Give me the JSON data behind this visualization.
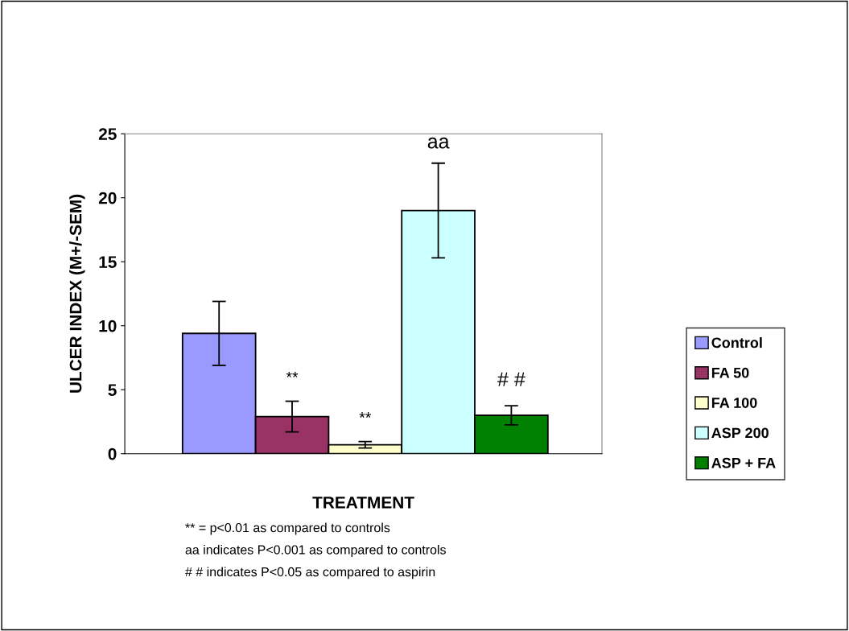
{
  "chart_data": {
    "type": "bar",
    "xlabel": "TREATMENT",
    "ylabel": "ULCER INDEX (M+/-SEM)",
    "categories": [
      null
    ],
    "series": [
      {
        "name": "Control",
        "color": "#9999ff",
        "values": [
          9.4
        ],
        "errors": [
          2.5
        ]
      },
      {
        "name": "FA 50",
        "color": "#993366",
        "values": [
          2.9
        ],
        "errors": [
          1.2
        ]
      },
      {
        "name": "FA 100",
        "color": "#ffffcc",
        "values": [
          0.7
        ],
        "errors": [
          0.25
        ]
      },
      {
        "name": "ASP 200",
        "color": "#ccffff",
        "values": [
          19.0
        ],
        "errors": [
          3.7
        ]
      },
      {
        "name": "ASP + FA",
        "color": "#008000",
        "values": [
          3.0
        ],
        "errors": [
          0.75
        ]
      }
    ],
    "ylim": [
      0,
      25
    ],
    "yticks": [
      0,
      5,
      10,
      15,
      20,
      25
    ],
    "grid": false,
    "legend": "right",
    "annotations": [
      "**",
      "**",
      "aa",
      "# #",
      "** = p<0.01 as compared to controls",
      "aa indicates P<0.001 as compared to controls",
      "# # indicates P<0.05 as compared to aspirin"
    ]
  }
}
